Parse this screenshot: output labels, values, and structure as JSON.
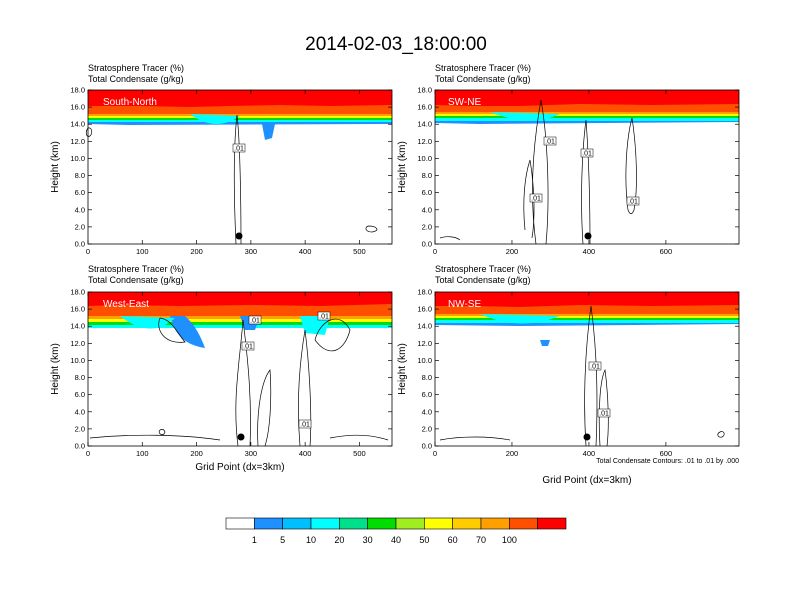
{
  "title": "2014-02-03_18:00:00",
  "panels": [
    {
      "header_line1": "Stratosphere Tracer   (%)",
      "header_line2": "Total Condensate   (g/kg)",
      "label": "South-North",
      "ylabel": "Height (km)",
      "xlabel": "",
      "x_ticks": [
        "0",
        "100",
        "200",
        "300",
        "400",
        "500"
      ],
      "y_ticks": [
        "0.0",
        "2.0",
        "4.0",
        "6.0",
        "8.0",
        "10.0",
        "12.0",
        "14.0",
        "16.0",
        "18.0"
      ],
      "contour_labels": [
        ".01"
      ],
      "note": ""
    },
    {
      "header_line1": "Stratosphere Tracer   (%)",
      "header_line2": "Total Condensate   (g/kg)",
      "label": "SW-NE",
      "ylabel": "Height (km)",
      "xlabel": "",
      "x_ticks": [
        "0",
        "200",
        "400",
        "600"
      ],
      "y_ticks": [
        "0.0",
        "2.0",
        "4.0",
        "6.0",
        "8.0",
        "10.0",
        "12.0",
        "14.0",
        "16.0",
        "18.0"
      ],
      "contour_labels": [
        ".01",
        ".01",
        ".01",
        ".01"
      ],
      "note": ""
    },
    {
      "header_line1": "Stratosphere Tracer   (%)",
      "header_line2": "Total Condensate   (g/kg)",
      "label": "West-East",
      "ylabel": "Height (km)",
      "xlabel": "Grid Point (dx=3km)",
      "x_ticks": [
        "0",
        "100",
        "200",
        "300",
        "400",
        "500"
      ],
      "y_ticks": [
        "0.0",
        "2.0",
        "4.0",
        "6.0",
        "8.0",
        "10.0",
        "12.0",
        "14.0",
        "16.0",
        "18.0"
      ],
      "contour_labels": [
        ".01",
        ".01",
        ".01",
        ".01"
      ],
      "note": ""
    },
    {
      "header_line1": "Stratosphere Tracer   (%)",
      "header_line2": "Total Condensate   (g/kg)",
      "label": "NW-SE",
      "ylabel": "Height (km)",
      "xlabel": "Grid Point (dx=3km)",
      "x_ticks": [
        "0",
        "200",
        "400",
        "600"
      ],
      "y_ticks": [
        "0.0",
        "2.0",
        "4.0",
        "6.0",
        "8.0",
        "10.0",
        "12.0",
        "14.0",
        "16.0",
        "18.0"
      ],
      "contour_labels": [
        ".01",
        ".01"
      ],
      "note": "Total Condensate Contours: .01 to .01 by .000"
    }
  ],
  "colorbar": {
    "colors": [
      "#ffffff",
      "#1e90ff",
      "#00bfff",
      "#00ffff",
      "#00e08a",
      "#00dd00",
      "#a0ee20",
      "#ffff00",
      "#ffcc00",
      "#ffa000",
      "#ff5000",
      "#ff0000"
    ],
    "labels": [
      "1",
      "5",
      "10",
      "20",
      "30",
      "40",
      "50",
      "60",
      "70",
      "100"
    ]
  },
  "chart_data": [
    {
      "type": "heatmap",
      "title": "South-North",
      "xlabel": "",
      "ylabel": "Height (km)",
      "xlim": [
        0,
        560
      ],
      "ylim": [
        0,
        18
      ],
      "series": [
        {
          "name": "Stratosphere Tracer (%)",
          "description_levels": [
            1,
            5,
            10,
            20,
            30,
            40,
            50,
            60,
            70,
            100
          ]
        },
        {
          "name": "Total Condensate (g/kg)",
          "contour_levels": [
            0.01
          ]
        }
      ],
      "marker_point": {
        "x": 280,
        "y": 1.0
      }
    },
    {
      "type": "heatmap",
      "title": "SW-NE",
      "xlabel": "",
      "ylabel": "Height (km)",
      "xlim": [
        0,
        790
      ],
      "ylim": [
        0,
        18
      ],
      "series": [
        {
          "name": "Stratosphere Tracer (%)",
          "description_levels": [
            1,
            5,
            10,
            20,
            30,
            40,
            50,
            60,
            70,
            100
          ]
        },
        {
          "name": "Total Condensate (g/kg)",
          "contour_levels": [
            0.01
          ]
        }
      ],
      "marker_point": {
        "x": 395,
        "y": 1.0
      }
    },
    {
      "type": "heatmap",
      "title": "West-East",
      "xlabel": "Grid Point (dx=3km)",
      "ylabel": "Height (km)",
      "xlim": [
        0,
        560
      ],
      "ylim": [
        0,
        18
      ],
      "series": [
        {
          "name": "Stratosphere Tracer (%)",
          "description_levels": [
            1,
            5,
            10,
            20,
            30,
            40,
            50,
            60,
            70,
            100
          ]
        },
        {
          "name": "Total Condensate (g/kg)",
          "contour_levels": [
            0.01
          ]
        }
      ],
      "marker_point": {
        "x": 275,
        "y": 1.0
      }
    },
    {
      "type": "heatmap",
      "title": "NW-SE",
      "xlabel": "Grid Point (dx=3km)",
      "ylabel": "Height (km)",
      "xlim": [
        0,
        790
      ],
      "ylim": [
        0,
        18
      ],
      "series": [
        {
          "name": "Stratosphere Tracer (%)",
          "description_levels": [
            1,
            5,
            10,
            20,
            30,
            40,
            50,
            60,
            70,
            100
          ]
        },
        {
          "name": "Total Condensate (g/kg)",
          "contour_levels": [
            0.01
          ]
        }
      ],
      "marker_point": {
        "x": 395,
        "y": 1.0
      }
    }
  ]
}
